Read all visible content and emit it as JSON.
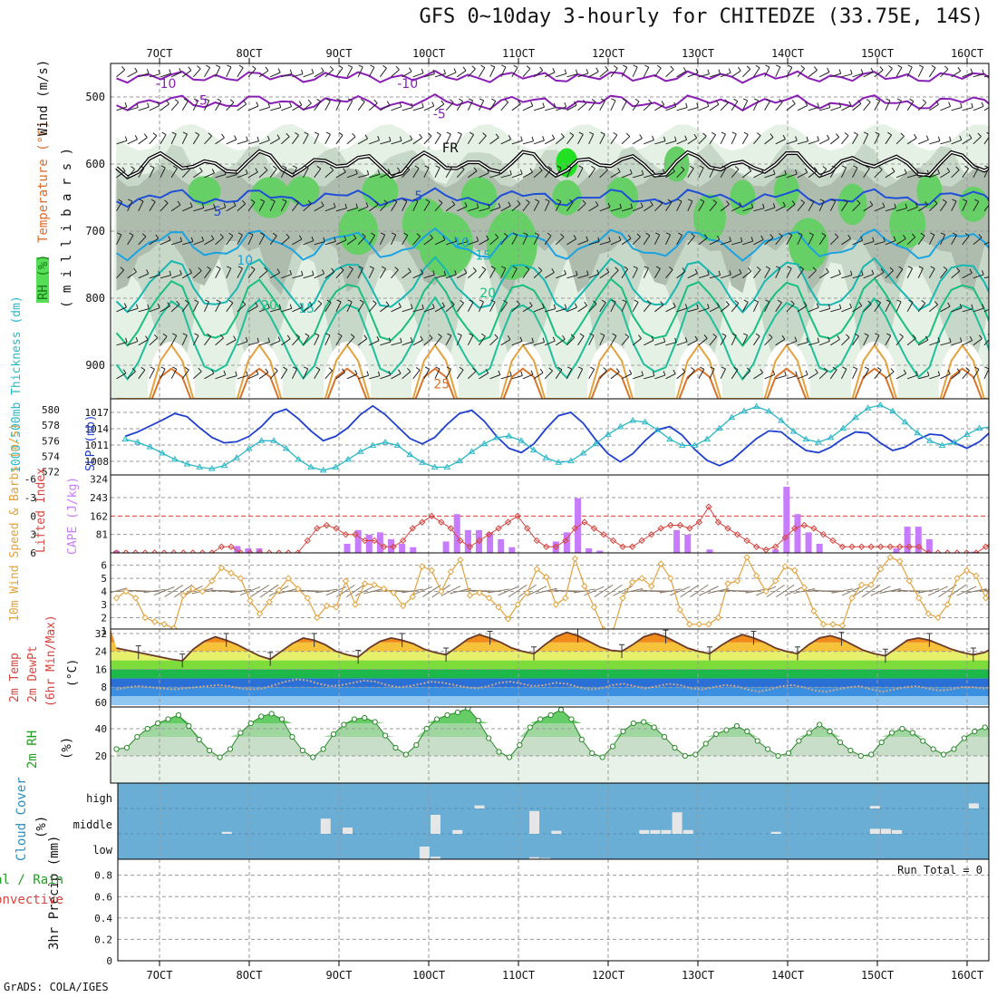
{
  "title": "GFS 0~10day 3-hourly for CHITEDZE (33.75E, 14S)",
  "credit": "GrADS: COLA/IGES",
  "time_labels": [
    "7OCT",
    "8OCT",
    "9OCT",
    "10OCT",
    "11OCT",
    "12OCT",
    "13OCT",
    "14OCT",
    "15OCT",
    "16OCT"
  ],
  "chart_data": [
    {
      "id": "upper-air",
      "type": "heatmap",
      "labels": {
        "rh": "RH (%)",
        "temperature": "Temperature (°C)",
        "wind": "Wind (m/s)",
        "units": "( m i l l i b a r s )"
      },
      "ylim": [
        950,
        450
      ],
      "yticks": [
        500,
        600,
        700,
        800,
        900
      ],
      "isotherm_labels": [
        {
          "v": "-10",
          "t": 4.5,
          "p": 480
        },
        {
          "v": "-10",
          "t": 26.5,
          "p": 480
        },
        {
          "v": "-5",
          "t": 7.7,
          "p": 505
        },
        {
          "v": "-5",
          "t": 29.4,
          "p": 525
        },
        {
          "v": "FR",
          "t": 30.4,
          "p": 576
        },
        {
          "v": "5",
          "t": 27.5,
          "p": 647
        },
        {
          "v": "5",
          "t": 9.2,
          "p": 670
        },
        {
          "v": "10",
          "t": 11.7,
          "p": 743
        },
        {
          "v": "10",
          "t": 31.4,
          "p": 717
        },
        {
          "v": "15",
          "t": 33.4,
          "p": 736
        },
        {
          "v": "15",
          "t": 17.3,
          "p": 815
        },
        {
          "v": "20",
          "t": 13.9,
          "p": 810
        },
        {
          "v": "20",
          "t": 33.8,
          "p": 792
        },
        {
          "v": "25",
          "t": 29.6,
          "p": 928
        }
      ],
      "colors": {
        "rh_light": "#e6f1e6",
        "rh_mid": "#c8d8c8",
        "rh_grey": "#aebcae",
        "rh_green": "#66d066",
        "rh_bright": "#22e022"
      }
    },
    {
      "id": "slp-thickness",
      "type": "line",
      "labels": {
        "slp": "SLP (mb)",
        "thickness": "1000-500mb Thickness (dm)"
      },
      "slp_ticks": [
        1008,
        1011,
        1014,
        1017
      ],
      "thk_ticks": [
        572,
        574,
        576,
        578,
        580
      ],
      "slp_range": [
        1005.5,
        1019.5
      ],
      "thk_range": [
        571.6,
        581.4
      ],
      "series": [
        {
          "name": "SLP",
          "color": "#1f3fd0",
          "values": [
            1012.6,
            1013.4,
            1014.5,
            1015.6,
            1016.8,
            1016.2,
            1014.2,
            1012.4,
            1011.4,
            1011.6,
            1012.6,
            1014.4,
            1016.8,
            1017.6,
            1015.8,
            1013.6,
            1011.8,
            1012.6,
            1014.2,
            1016.6,
            1018.2,
            1016.6,
            1014.4,
            1012.2,
            1011.2,
            1012.4,
            1014.8,
            1016.8,
            1017.4,
            1015.4,
            1012.6,
            1010.4,
            1009.6,
            1011.2,
            1014.0,
            1016.4,
            1017.0,
            1015.0,
            1012.0,
            1009.4,
            1007.9,
            1009.4,
            1011.8,
            1013.8,
            1014.4,
            1012.8,
            1010.2,
            1008.2,
            1007.2,
            1008.2,
            1010.2,
            1012.2,
            1013.6,
            1013.4,
            1011.6,
            1010.0,
            1009.6,
            1010.6,
            1012.2,
            1013.4,
            1013.2,
            1011.4,
            1010.0,
            1010.6,
            1012.0,
            1013.0,
            1012.8,
            1011.4,
            1010.4,
            1011.6,
            1013.6,
            1015.0
          ]
        },
        {
          "name": "Thickness",
          "color": "#2ab7c7",
          "values": [
            576.2,
            575.8,
            575.2,
            574.4,
            573.6,
            573.0,
            572.6,
            572.4,
            572.8,
            573.8,
            575.0,
            576.0,
            576.0,
            575.0,
            573.6,
            572.6,
            572.2,
            572.6,
            573.6,
            574.6,
            575.4,
            575.8,
            575.4,
            574.2,
            573.2,
            572.6,
            572.6,
            573.4,
            574.6,
            575.6,
            576.4,
            576.6,
            576.0,
            574.8,
            573.8,
            573.2,
            573.4,
            574.4,
            575.6,
            576.8,
            577.8,
            578.6,
            578.4,
            577.4,
            576.2,
            575.4,
            575.4,
            576.2,
            577.6,
            579.0,
            579.8,
            580.4,
            579.8,
            578.6,
            577.2,
            576.2,
            575.8,
            576.4,
            577.6,
            579.0,
            580.2,
            580.6,
            579.8,
            578.4,
            577.0,
            576.0,
            575.4,
            575.8,
            576.8,
            577.6,
            577.8,
            577.0
          ]
        }
      ]
    },
    {
      "id": "lifted-cape",
      "type": "bar",
      "labels": {
        "li": "Lifted Index",
        "cape": "CAPE (J/kg)"
      },
      "li_ticks": [
        -3,
        0,
        3,
        6
      ],
      "li_top_tick": "-6",
      "cape_ticks": [
        81,
        162,
        243,
        324
      ],
      "li_range": [
        6,
        -6.7
      ],
      "cape_range": [
        0,
        342
      ],
      "cape_bars": [
        {
          "t": 0,
          "v": 10
        },
        {
          "t": 11,
          "v": 30
        },
        {
          "t": 12,
          "v": 20
        },
        {
          "t": 13,
          "v": 20
        },
        {
          "t": 21,
          "v": 40
        },
        {
          "t": 22,
          "v": 100
        },
        {
          "t": 23,
          "v": 80
        },
        {
          "t": 24,
          "v": 90
        },
        {
          "t": 25,
          "v": 60
        },
        {
          "t": 26,
          "v": 40
        },
        {
          "t": 27,
          "v": 25
        },
        {
          "t": 30,
          "v": 50
        },
        {
          "t": 31,
          "v": 170
        },
        {
          "t": 32,
          "v": 100
        },
        {
          "t": 33,
          "v": 100
        },
        {
          "t": 34,
          "v": 90
        },
        {
          "t": 35,
          "v": 60
        },
        {
          "t": 36,
          "v": 25
        },
        {
          "t": 40,
          "v": 50
        },
        {
          "t": 41,
          "v": 90
        },
        {
          "t": 42,
          "v": 240
        },
        {
          "t": 43,
          "v": 20
        },
        {
          "t": 44,
          "v": 10
        },
        {
          "t": 51,
          "v": 100
        },
        {
          "t": 52,
          "v": 80
        },
        {
          "t": 54,
          "v": 15
        },
        {
          "t": 60,
          "v": 15
        },
        {
          "t": 61,
          "v": 290
        },
        {
          "t": 62,
          "v": 170
        },
        {
          "t": 63,
          "v": 90
        },
        {
          "t": 64,
          "v": 40
        },
        {
          "t": 71,
          "v": 20
        },
        {
          "t": 72,
          "v": 115
        },
        {
          "t": 73,
          "v": 115
        },
        {
          "t": 74,
          "v": 60
        },
        {
          "t": 78,
          "v": 5
        },
        {
          "t": 82,
          "v": 5
        }
      ],
      "li_values": [
        6.0,
        6.0,
        6.0,
        6.0,
        6.0,
        6.0,
        6.0,
        6.0,
        6.0,
        6.0,
        6.0,
        5.0,
        5.0,
        6.0,
        6.0,
        6.0,
        6.0,
        6.0,
        6.0,
        6.0,
        4.0,
        2.0,
        1.5,
        2.0,
        3.0,
        3.0,
        4.0,
        4.0,
        5.0,
        5.0,
        4.0,
        2.0,
        1.0,
        0.0,
        1.0,
        2.0,
        4.0,
        5.0,
        4.0,
        3.0,
        2.0,
        1.0,
        0.0,
        2.0,
        4.0,
        5.0,
        5.0,
        4.0,
        2.0,
        1.0,
        2.0,
        3.0,
        4.0,
        5.0,
        5.0,
        4.0,
        3.0,
        2.0,
        1.5,
        1.5,
        2.0,
        1.0,
        -1.5,
        1.0,
        2.0,
        3.0,
        4.0,
        5.0,
        5.5,
        5.0,
        3.5,
        2.0,
        1.5,
        2.0,
        3.0,
        4.0,
        5.0,
        5.0,
        5.0,
        5.0,
        5.0,
        5.0,
        5.0,
        5.0,
        5.0,
        6.0,
        6.0,
        6.0,
        6.0,
        6.0,
        6.0,
        5.0,
        4.0
      ],
      "colors": {
        "cape": "#c77cff",
        "li": "#d6453f",
        "zero_line": "#e03a3a"
      }
    },
    {
      "id": "wind10m",
      "type": "line",
      "labels": {
        "wind": "10m Wind Speed & Barbs (m/s)"
      },
      "yticks": [
        1,
        2,
        3,
        4,
        5,
        6
      ],
      "ylim": [
        1,
        6.8
      ],
      "series": [
        {
          "name": "10m Wind Speed",
          "color": "#e3a23c",
          "values": [
            3.5,
            4.0,
            3.5,
            2.0,
            1.7,
            1.5,
            1.2,
            3.7,
            4.2,
            4.0,
            4.8,
            5.8,
            5.4,
            5.0,
            3.3,
            2.3,
            3.2,
            4.1,
            5.0,
            4.2,
            3.5,
            2.0,
            2.9,
            2.8,
            4.8,
            3.0,
            4.6,
            4.5,
            4.2,
            3.9,
            2.9,
            3.6,
            5.9,
            5.6,
            4.0,
            5.5,
            6.4,
            3.7,
            3.9,
            3.5,
            2.8,
            1.9,
            3.0,
            3.9,
            5.7,
            5.1,
            3.0,
            3.5,
            6.5,
            4.4,
            2.8,
            1.1,
            1.0,
            3.5,
            4.7,
            5.0,
            4.4,
            6.1,
            5.0,
            2.6,
            1.5,
            1.5,
            1.5,
            2.0,
            4.6,
            4.8,
            6.6,
            5.2,
            4.0,
            4.8,
            5.9,
            5.6,
            4.3,
            2.5,
            1.5,
            1.5,
            1.4,
            3.5,
            4.5,
            4.5,
            5.7,
            6.6,
            6.3,
            4.8,
            3.5,
            2.3,
            2.0,
            3.0,
            5.0,
            5.6,
            5.2,
            3.5,
            5.7
          ]
        }
      ]
    },
    {
      "id": "temp2m",
      "type": "area",
      "labels": {
        "temp": "2m Temp",
        "dewpt": "2m DewPt",
        "minmax": "(6hr Min/Max)",
        "units": "(°C)"
      },
      "yticks": [
        8,
        16,
        24,
        32
      ],
      "bottom_label": "60",
      "ylim": [
        0,
        34
      ],
      "series": [
        {
          "name": "2m Temp",
          "values": [
            25.5,
            24.5,
            23.5,
            22.5,
            21.5,
            20.5,
            19.8,
            25.0,
            28.5,
            30.5,
            29.0,
            27.0,
            24.5,
            22.0,
            20.5,
            24.0,
            27.5,
            30.0,
            29.0,
            27.0,
            24.0,
            22.5,
            21.5,
            25.5,
            28.5,
            30.0,
            29.0,
            27.5,
            25.0,
            23.5,
            22.5,
            26.0,
            29.5,
            31.5,
            30.0,
            28.0,
            25.5,
            24.0,
            23.0,
            27.0,
            30.5,
            32.5,
            31.0,
            28.5,
            26.0,
            24.5,
            24.0,
            27.0,
            30.5,
            32.0,
            30.5,
            28.0,
            25.5,
            24.0,
            23.0,
            26.5,
            29.5,
            31.5,
            30.0,
            28.0,
            25.5,
            24.0,
            23.0,
            27.0,
            30.0,
            31.0,
            29.5,
            27.0,
            24.5,
            23.0,
            22.0,
            25.5,
            29.0,
            30.0,
            29.0,
            27.0,
            25.0,
            23.5,
            22.5,
            23.5,
            26.0
          ]
        },
        {
          "name": "2m DewPt",
          "values": [
            7.0,
            8.0,
            8.5,
            8.0,
            7.5,
            7.0,
            7.5,
            8.0,
            8.5,
            9.0,
            8.5,
            7.5,
            7.0,
            7.5,
            9.0,
            10.5,
            11.5,
            11.0,
            9.5,
            8.5,
            9.0,
            10.0,
            11.0,
            10.5,
            9.0,
            8.0,
            8.5,
            9.5,
            10.5,
            10.0,
            9.0,
            8.0,
            7.5,
            8.5,
            10.0,
            10.5,
            9.5,
            8.5,
            9.0,
            10.0,
            9.5,
            8.0,
            7.0,
            7.5,
            9.0,
            9.5,
            8.5,
            7.5,
            8.5,
            9.5,
            9.0,
            7.5,
            7.0,
            8.0,
            9.0,
            8.5,
            7.0,
            6.0,
            7.0,
            8.5,
            9.0,
            8.0,
            6.5,
            6.0,
            7.0,
            8.0,
            8.5,
            7.0,
            6.0,
            7.0,
            8.0,
            8.5,
            7.5,
            6.5,
            7.0,
            8.0,
            8.0,
            7.5,
            8.0
          ]
        }
      ]
    },
    {
      "id": "rh2m",
      "type": "area",
      "labels": {
        "rh": "2m RH",
        "units": "(%)"
      },
      "yticks": [
        20,
        40
      ],
      "ylim": [
        0,
        56
      ],
      "series": [
        {
          "name": "2m RH",
          "values": [
            25,
            26,
            34,
            40,
            44,
            47,
            50,
            42,
            32,
            24,
            19,
            25,
            37,
            44,
            49,
            51,
            47,
            34,
            24,
            19,
            25,
            36,
            43,
            47,
            48,
            45,
            35,
            26,
            21,
            28,
            40,
            47,
            50,
            52,
            55,
            46,
            33,
            23,
            19,
            28,
            41,
            47,
            50,
            54,
            47,
            32,
            22,
            19,
            27,
            38,
            44,
            45,
            41,
            34,
            26,
            20,
            21,
            29,
            36,
            39,
            42,
            38,
            31,
            25,
            20,
            22,
            31,
            37,
            43,
            38,
            30,
            24,
            20,
            21,
            30,
            37,
            40,
            37,
            31,
            25,
            21,
            25,
            33,
            38,
            41,
            38
          ]
        }
      ]
    },
    {
      "id": "cloud",
      "type": "bar",
      "labels": {
        "cloud": "Cloud Cover",
        "units": "(%)",
        "high": "high",
        "middle": "middle",
        "low": "low"
      },
      "colors": {
        "bg": "#6aaed6",
        "cloud": "#e6e6e6"
      },
      "bars": [
        {
          "level": "middle",
          "t": 10,
          "v": 0.08
        },
        {
          "level": "middle",
          "t": 19,
          "v": 0.6
        },
        {
          "level": "middle",
          "t": 21,
          "v": 0.25
        },
        {
          "level": "middle",
          "t": 29,
          "v": 0.75
        },
        {
          "level": "middle",
          "t": 31,
          "v": 0.15
        },
        {
          "level": "high",
          "t": 33,
          "v": 0.12
        },
        {
          "level": "middle",
          "t": 38,
          "v": 0.9
        },
        {
          "level": "middle",
          "t": 40,
          "v": 0.12
        },
        {
          "level": "middle",
          "t": 48,
          "v": 0.15
        },
        {
          "level": "middle",
          "t": 49,
          "v": 0.15
        },
        {
          "level": "middle",
          "t": 50,
          "v": 0.15
        },
        {
          "level": "middle",
          "t": 51,
          "v": 0.85
        },
        {
          "level": "middle",
          "t": 52,
          "v": 0.15
        },
        {
          "level": "middle",
          "t": 60,
          "v": 0.08
        },
        {
          "level": "high",
          "t": 69,
          "v": 0.1
        },
        {
          "level": "middle",
          "t": 69,
          "v": 0.2
        },
        {
          "level": "middle",
          "t": 70,
          "v": 0.2
        },
        {
          "level": "middle",
          "t": 71,
          "v": 0.15
        },
        {
          "level": "high",
          "t": 78,
          "v": 0.2
        },
        {
          "level": "low",
          "t": 28,
          "v": 0.5
        },
        {
          "level": "low",
          "t": 29,
          "v": 0.1
        },
        {
          "level": "low",
          "t": 38,
          "v": 0.08
        },
        {
          "level": "low",
          "t": 39,
          "v": 0.05
        }
      ]
    },
    {
      "id": "precip",
      "type": "bar",
      "labels": {
        "precip": "3hr Precip (mm)",
        "total": "Total / Rain",
        "convective": "Convective",
        "run_total": "Run Total = 0"
      },
      "yticks": [
        "0",
        "0.2",
        "0.4",
        "0.6",
        "0.8"
      ],
      "ylim": [
        0,
        0.95
      ],
      "values": []
    }
  ]
}
